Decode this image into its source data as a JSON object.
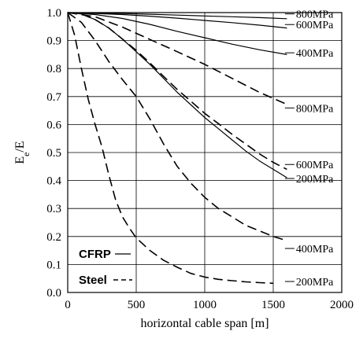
{
  "chart_data": {
    "type": "line",
    "xlabel": "horizontal cable span [m]",
    "ylabel_main": "E",
    "ylabel_sub": "e",
    "ylabel_tail": "/E",
    "xlim": [
      0,
      2000
    ],
    "ylim": [
      0.0,
      1.0
    ],
    "xticks": [
      "0",
      "500",
      "1000",
      "1500",
      "2000"
    ],
    "yticks": [
      "0.0",
      "0.1",
      "0.2",
      "0.3",
      "0.4",
      "0.5",
      "0.6",
      "0.7",
      "0.8",
      "0.9",
      "1.0"
    ],
    "grid": true,
    "legend": {
      "position": "bottom-left",
      "entries": [
        {
          "label": "CFRP",
          "style": "solid"
        },
        {
          "label": "Steel",
          "style": "dashed"
        }
      ]
    },
    "series": [
      {
        "material": "CFRP",
        "stress": "800MPa",
        "style": "solid",
        "x": [
          0,
          200,
          400,
          600,
          800,
          1000,
          1200,
          1400,
          1600
        ],
        "y": [
          1.0,
          0.999,
          0.997,
          0.994,
          0.991,
          0.988,
          0.985,
          0.982,
          0.978
        ]
      },
      {
        "material": "CFRP",
        "stress": "600MPa",
        "style": "solid",
        "x": [
          0,
          200,
          400,
          600,
          800,
          1000,
          1200,
          1400,
          1600
        ],
        "y": [
          1.0,
          0.997,
          0.993,
          0.987,
          0.98,
          0.972,
          0.964,
          0.955,
          0.945
        ]
      },
      {
        "material": "CFRP",
        "stress": "400MPa",
        "style": "solid",
        "x": [
          0,
          200,
          400,
          600,
          800,
          1000,
          1200,
          1400,
          1600
        ],
        "y": [
          1.0,
          0.993,
          0.979,
          0.958,
          0.933,
          0.91,
          0.887,
          0.867,
          0.85
        ]
      },
      {
        "material": "CFRP",
        "stress": "200MPa",
        "style": "solid",
        "x": [
          0,
          100,
          200,
          300,
          400,
          500,
          600,
          700,
          800,
          900,
          1000,
          1100,
          1200,
          1300,
          1400,
          1500,
          1600
        ],
        "y": [
          1.0,
          0.995,
          0.975,
          0.945,
          0.905,
          0.86,
          0.815,
          0.765,
          0.715,
          0.67,
          0.625,
          0.585,
          0.545,
          0.505,
          0.47,
          0.44,
          0.41
        ]
      },
      {
        "material": "Steel",
        "stress": "800MPa",
        "style": "dashed",
        "x": [
          0,
          200,
          400,
          600,
          800,
          1000,
          1200,
          1400,
          1600
        ],
        "y": [
          1.0,
          0.985,
          0.948,
          0.904,
          0.86,
          0.815,
          0.765,
          0.715,
          0.672
        ]
      },
      {
        "material": "Steel",
        "stress": "600MPa",
        "style": "dashed",
        "x": [
          0,
          100,
          200,
          300,
          400,
          500,
          600,
          700,
          800,
          900,
          1000,
          1100,
          1200,
          1300,
          1400,
          1500,
          1600
        ],
        "y": [
          1.0,
          0.995,
          0.975,
          0.945,
          0.905,
          0.865,
          0.82,
          0.772,
          0.725,
          0.683,
          0.64,
          0.603,
          0.565,
          0.53,
          0.495,
          0.465,
          0.44
        ]
      },
      {
        "material": "Steel",
        "stress": "400MPa",
        "style": "dashed",
        "x": [
          0,
          100,
          200,
          300,
          400,
          500,
          600,
          700,
          800,
          900,
          1000,
          1100,
          1200,
          1300,
          1400,
          1500,
          1600
        ],
        "y": [
          1.0,
          0.965,
          0.9,
          0.825,
          0.76,
          0.7,
          0.62,
          0.53,
          0.45,
          0.39,
          0.34,
          0.3,
          0.27,
          0.24,
          0.22,
          0.2,
          0.185
        ]
      },
      {
        "material": "Steel",
        "stress": "200MPa",
        "style": "dashed",
        "x": [
          0,
          50,
          100,
          150,
          200,
          250,
          300,
          350,
          400,
          450,
          500,
          600,
          700,
          800,
          900,
          1000,
          1100,
          1200,
          1300,
          1400,
          1500
        ],
        "y": [
          1.0,
          0.92,
          0.8,
          0.69,
          0.6,
          0.52,
          0.42,
          0.33,
          0.27,
          0.23,
          0.195,
          0.15,
          0.115,
          0.09,
          0.068,
          0.055,
          0.047,
          0.042,
          0.038,
          0.035,
          0.033
        ]
      }
    ],
    "end_labels": [
      {
        "text": "800MPa",
        "x": 1620,
        "y": 0.984
      },
      {
        "text": "600MPa",
        "x": 1620,
        "y": 0.946
      },
      {
        "text": "400MPa",
        "x": 1620,
        "y": 0.845
      },
      {
        "text": "800MPa",
        "x": 1620,
        "y": 0.648
      },
      {
        "text": "600MPa",
        "x": 1620,
        "y": 0.446
      },
      {
        "text": "200MPa",
        "x": 1620,
        "y": 0.396
      },
      {
        "text": "400MPa",
        "x": 1620,
        "y": 0.146
      },
      {
        "text": "200MPa",
        "x": 1620,
        "y": 0.028
      }
    ]
  }
}
